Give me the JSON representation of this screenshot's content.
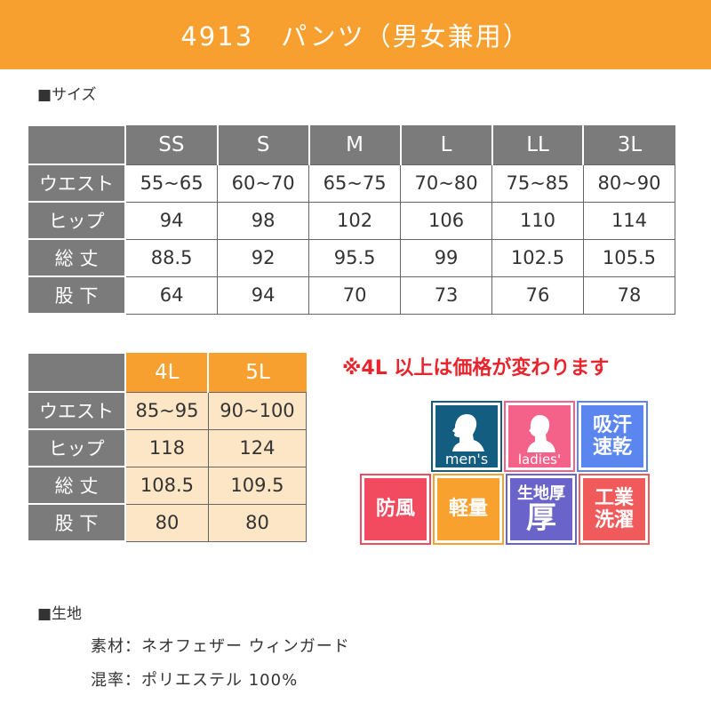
{
  "title": "4913　パンツ（男女兼用）",
  "size_section": "■サイズ",
  "table1": {
    "headers": [
      "SS",
      "S",
      "M",
      "L",
      "LL",
      "3L"
    ],
    "rows": [
      {
        "label": "ウエスト",
        "values": [
          "55~65",
          "60~70",
          "65~75",
          "70~80",
          "75~85",
          "80~90"
        ]
      },
      {
        "label": "ヒップ",
        "values": [
          "94",
          "98",
          "102",
          "106",
          "110",
          "114"
        ]
      },
      {
        "label": "総 丈",
        "values": [
          "88.5",
          "92",
          "95.5",
          "99",
          "102.5",
          "105.5"
        ]
      },
      {
        "label": "股 下",
        "values": [
          "64",
          "94",
          "70",
          "73",
          "76",
          "78"
        ]
      }
    ]
  },
  "table2": {
    "headers": [
      "4L",
      "5L"
    ],
    "rows": [
      {
        "label": "ウエスト",
        "values": [
          "85~95",
          "90~100"
        ]
      },
      {
        "label": "ヒップ",
        "values": [
          "118",
          "124"
        ]
      },
      {
        "label": "総 丈",
        "values": [
          "108.5",
          "109.5"
        ]
      },
      {
        "label": "股 下",
        "values": [
          "80",
          "80"
        ]
      }
    ]
  },
  "note": "※4L 以上は価格が変わります",
  "badges": {
    "mens": {
      "label": "men's",
      "color": "#135d80"
    },
    "ladies": {
      "label": "ladies'",
      "color": "#f4628a"
    },
    "kyukan": {
      "label": "吸汗速乾",
      "color": "#5b86f0"
    },
    "bofu": {
      "label": "防風",
      "color": "#f24a5e"
    },
    "keiryo": {
      "label": "軽量",
      "color": "#f9a12e"
    },
    "kiji_atsu": {
      "label": "生地厚",
      "big": "厚",
      "color": "#6a63c9"
    },
    "kogyo": {
      "label": "工業洗濯",
      "color": "#f05a5a"
    }
  },
  "fabric_section": "■生地",
  "fabric": {
    "material": "素材：ネオフェザー ウィンガード",
    "blend": "混率：ポリエステル 100%"
  }
}
